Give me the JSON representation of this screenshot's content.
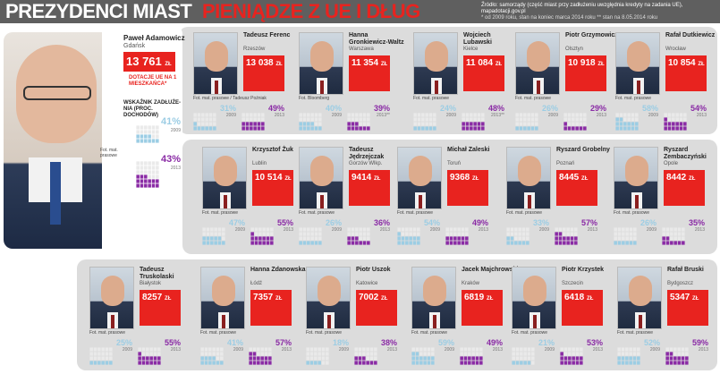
{
  "header": {
    "title_part1": "PREZYDENCI MIAST",
    "title_part2": "PIENIĄDZE Z UE I DŁUG",
    "source": "Źródło: samorządy (część miast przy zadłużeniu uwzględnia kredyty na zadania UE), mapadotacji.gov.pl",
    "note": "* od 2009 roku, stan na koniec marca 2014 roku   ** stan na 8.05.2014 roku"
  },
  "hero": {
    "name": "Paweł Adamowicz",
    "city": "Gdańsk",
    "amount": "13 761",
    "unit": "ZŁ",
    "amount_label": "DOTACJE UE NA 1 MIESZKAŃCA*",
    "debt_label": "WSKAŹNIK ZADŁUŻE-NIA (PROC. DOCHODÓW)",
    "photo_credit": "Fot. mat. prasowe",
    "debt_2009": "41%",
    "debt_2013": "43%",
    "year_2009": "2009",
    "year_2013": "2013",
    "debt_2009_value": 41,
    "debt_2013_value": 43
  },
  "colors": {
    "accent": "#e8231f",
    "pct_2009": "#9ccde4",
    "pct_2013": "#8a2ba5"
  },
  "cards": [
    {
      "name": "Tadeusz Ferenc",
      "city": "Rzeszów",
      "amount": "13 038",
      "unit": "ZŁ",
      "credit": "Fot. mat. prasowe / Tadeusz Poźniak",
      "d2009": "31%",
      "d2013": "49%",
      "y2009": "2009",
      "y2013": "2013"
    },
    {
      "name": "Hanna Gronkiewicz-Waltz",
      "city": "Warszawa",
      "amount": "11 354",
      "unit": "ZŁ",
      "credit": "Fot. Bloomberg",
      "d2009": "40%",
      "d2013": "39%",
      "y2009": "2009",
      "y2013": "2013**"
    },
    {
      "name": "Wojciech Lubawski",
      "city": "Kielce",
      "amount": "11 084",
      "unit": "ZŁ",
      "credit": "Fot. mat. prasowe",
      "d2009": "24%",
      "d2013": "48%",
      "y2009": "2009",
      "y2013": "2013**"
    },
    {
      "name": "Piotr Grzymowicz",
      "city": "Olsztyn",
      "amount": "10 918",
      "unit": "ZŁ",
      "credit": "Fot. mat. prasowe",
      "d2009": "26%",
      "d2013": "29%",
      "y2009": "2009",
      "y2013": "2013"
    },
    {
      "name": "Rafał Dutkiewicz",
      "city": "Wrocław",
      "amount": "10 854",
      "unit": "ZŁ",
      "credit": "Fot. mat. prasowe",
      "d2009": "58%",
      "d2013": "54%",
      "y2009": "2009",
      "y2013": "2013"
    },
    {
      "name": "Krzysztof Żuk",
      "city": "Lublin",
      "amount": "10 514",
      "unit": "ZŁ",
      "credit": "Fot. mat. prasowe",
      "d2009": "47%",
      "d2013": "55%",
      "y2009": "2009",
      "y2013": "2013"
    },
    {
      "name": "Tadeusz Jędrzejczak",
      "city": "Gorzów Wlkp.",
      "amount": "9414",
      "unit": "ZŁ",
      "credit": "Fot. mat. prasowe",
      "d2009": "26%",
      "d2013": "36%",
      "y2009": "2009",
      "y2013": "2013"
    },
    {
      "name": "Michał Zaleski",
      "city": "Toruń",
      "amount": "9368",
      "unit": "ZŁ",
      "credit": "Fot. mat. prasowe",
      "d2009": "54%",
      "d2013": "49%",
      "y2009": "2009",
      "y2013": "2013"
    },
    {
      "name": "Ryszard Grobelny",
      "city": "Poznań",
      "amount": "8445",
      "unit": "ZŁ",
      "credit": "Fot. mat. prasowe",
      "d2009": "33%",
      "d2013": "57%",
      "y2009": "2009",
      "y2013": "2013"
    },
    {
      "name": "Ryszard Zembaczyński",
      "city": "Opole",
      "amount": "8442",
      "unit": "ZŁ",
      "credit": "Fot. mat. prasowe",
      "d2009": "26%",
      "d2013": "35%",
      "y2009": "2009",
      "y2013": "2013"
    },
    {
      "name": "Tadeusz Truskolaski",
      "city": "Białystok",
      "amount": "8257",
      "unit": "ZŁ",
      "credit": "Fot. mat. prasowe",
      "d2009": "25%",
      "d2013": "55%",
      "y2009": "2009",
      "y2013": "2013"
    },
    {
      "name": "Hanna Zdanowska",
      "city": "Łódź",
      "amount": "7357",
      "unit": "ZŁ",
      "credit": "Fot. mat. prasowe",
      "d2009": "41%",
      "d2013": "57%",
      "y2009": "2009",
      "y2013": "2013"
    },
    {
      "name": "Piotr Uszok",
      "city": "Katowice",
      "amount": "7002",
      "unit": "ZŁ",
      "credit": "Fot. mat. prasowe",
      "d2009": "18%",
      "d2013": "38%",
      "y2009": "2009",
      "y2013": "2013"
    },
    {
      "name": "Jacek Majchrowski",
      "city": "Kraków",
      "amount": "6819",
      "unit": "ZŁ",
      "credit": "Fot. mat. prasowe",
      "d2009": "59%",
      "d2013": "49%",
      "y2009": "2009",
      "y2013": "2013"
    },
    {
      "name": "Piotr Krzystek",
      "city": "Szczecin",
      "amount": "6418",
      "unit": "ZŁ",
      "credit": "Fot. mat. prasowe",
      "d2009": "21%",
      "d2013": "53%",
      "y2009": "2009",
      "y2013": "2013"
    },
    {
      "name": "Rafał Bruski",
      "city": "Bydgoszcz",
      "amount": "5347",
      "unit": "ZŁ",
      "credit": "Fot. mat. prasowe",
      "d2009": "52%",
      "d2013": "59%",
      "y2009": "2009",
      "y2013": "2013"
    }
  ]
}
